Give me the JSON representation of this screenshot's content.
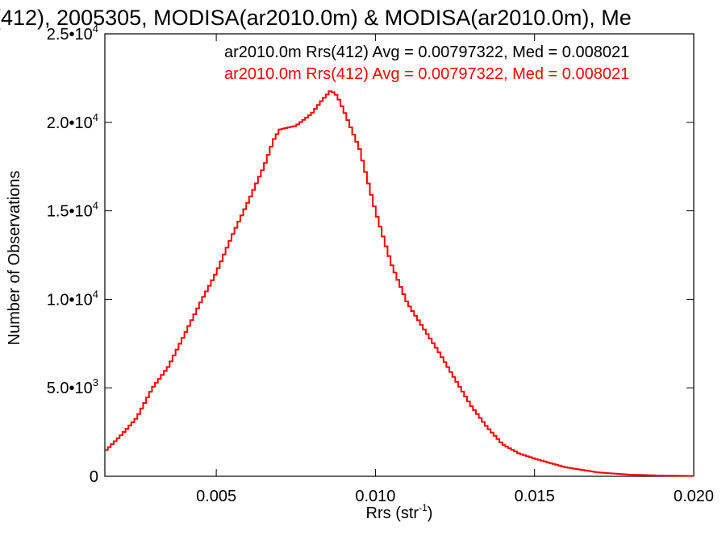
{
  "chart_data": {
    "type": "line",
    "title": "(412), 2005305, MODISA(ar2010.0m) & MODISA(ar2010.0m), Me",
    "xlabel": "Rrs (str",
    "xlabel_exp": "-1",
    "xlabel_close": ")",
    "ylabel": "Number of Observations",
    "xlim": [
      0.0015,
      0.02
    ],
    "ylim": [
      0,
      25000
    ],
    "x_ticks": [
      {
        "value": 0.005,
        "label": "0.005"
      },
      {
        "value": 0.01,
        "label": "0.010"
      },
      {
        "value": 0.015,
        "label": "0.015"
      },
      {
        "value": 0.02,
        "label": "0.020"
      }
    ],
    "y_ticks": [
      {
        "value": 0,
        "mantissa": "0",
        "exp": ""
      },
      {
        "value": 5000,
        "mantissa": "5.0•10",
        "exp": "3"
      },
      {
        "value": 10000,
        "mantissa": "1.0•10",
        "exp": "4"
      },
      {
        "value": 15000,
        "mantissa": "1.5•10",
        "exp": "4"
      },
      {
        "value": 20000,
        "mantissa": "2.0•10",
        "exp": "4"
      },
      {
        "value": 25000,
        "mantissa": "2.5•10",
        "exp": "4"
      }
    ],
    "legend": [
      {
        "text": "ar2010.0m Rrs(412) Avg = 0.00797322, Med = 0.008021",
        "color": "#000000"
      },
      {
        "text": "ar2010.0m Rrs(412) Avg = 0.00797322, Med = 0.008021",
        "color": "#ff0000"
      }
    ],
    "series": [
      {
        "color": "#ff0000",
        "x": [
          0.0015,
          0.002,
          0.0025,
          0.003,
          0.0035,
          0.004,
          0.0045,
          0.005,
          0.0055,
          0.006,
          0.0065,
          0.0068,
          0.007,
          0.0075,
          0.008,
          0.0083,
          0.0086,
          0.0088,
          0.009,
          0.0095,
          0.01,
          0.0105,
          0.011,
          0.0115,
          0.012,
          0.0125,
          0.013,
          0.0135,
          0.014,
          0.0145,
          0.015,
          0.016,
          0.017,
          0.018,
          0.019,
          0.02
        ],
        "values": [
          1400,
          2300,
          3300,
          5000,
          6200,
          8000,
          9800,
          11500,
          13600,
          15500,
          17500,
          19000,
          19600,
          19800,
          20500,
          21200,
          21800,
          21500,
          20700,
          18500,
          15000,
          12000,
          9800,
          8400,
          7000,
          5500,
          4000,
          2800,
          1800,
          1300,
          1000,
          500,
          220,
          90,
          40,
          20
        ]
      }
    ]
  }
}
